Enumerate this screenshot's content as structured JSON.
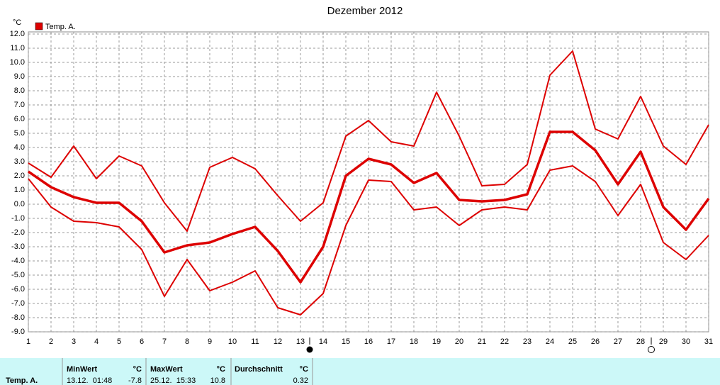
{
  "chart_data": {
    "type": "line",
    "title": "Dezember 2012",
    "y_unit": "°C",
    "legend": "Temp. A.",
    "legend_color": "#dd0000",
    "x": [
      1,
      2,
      3,
      4,
      5,
      6,
      7,
      8,
      9,
      10,
      11,
      12,
      13,
      14,
      15,
      16,
      17,
      18,
      19,
      20,
      21,
      22,
      23,
      24,
      25,
      26,
      27,
      28,
      29,
      30,
      31
    ],
    "xlim": [
      1,
      31
    ],
    "xticks": [
      1,
      2,
      3,
      4,
      5,
      6,
      7,
      8,
      9,
      10,
      11,
      12,
      13,
      14,
      15,
      16,
      17,
      18,
      19,
      20,
      21,
      22,
      23,
      24,
      25,
      26,
      27,
      28,
      29,
      30,
      31
    ],
    "ylim": [
      -9,
      12
    ],
    "yticks": [
      {
        "value": 12,
        "label": "12.0"
      },
      {
        "value": 11,
        "label": "11.0"
      },
      {
        "value": 10,
        "label": "10.0"
      },
      {
        "value": 9,
        "label": "9.0"
      },
      {
        "value": 8,
        "label": "8.0"
      },
      {
        "value": 7,
        "label": "7.0"
      },
      {
        "value": 6,
        "label": "6.0"
      },
      {
        "value": 5,
        "label": "5.0"
      },
      {
        "value": 4,
        "label": "4.0"
      },
      {
        "value": 3,
        "label": "3.0"
      },
      {
        "value": 2,
        "label": "2.0"
      },
      {
        "value": 1,
        "label": "1.0"
      },
      {
        "value": 0,
        "label": "0.0"
      },
      {
        "value": -1,
        "label": "-1.0"
      },
      {
        "value": -2,
        "label": "-2.0"
      },
      {
        "value": -3,
        "label": "-3.0"
      },
      {
        "value": -4,
        "label": "-4.0"
      },
      {
        "value": -5,
        "label": "-5.0"
      },
      {
        "value": -6,
        "label": "-6.0"
      },
      {
        "value": -7,
        "label": "-7.0"
      },
      {
        "value": -8,
        "label": "-8.0"
      },
      {
        "value": -9,
        "label": "-9.0"
      }
    ],
    "grid": true,
    "series": [
      {
        "color": "#dd0000",
        "width": 2,
        "values": [
          2.9,
          1.9,
          4.1,
          1.8,
          3.4,
          2.7,
          0.1,
          -1.9,
          2.6,
          3.3,
          2.5,
          0.6,
          -1.2,
          0.1,
          4.8,
          5.9,
          4.4,
          4.1,
          7.9,
          4.8,
          1.3,
          1.4,
          2.8,
          9.1,
          10.8,
          5.3,
          4.6,
          7.6,
          4.1,
          2.8,
          5.6
        ]
      },
      {
        "color": "#dd0000",
        "width": 3.5,
        "values": [
          2.3,
          1.2,
          0.5,
          0.1,
          0.1,
          -1.2,
          -3.4,
          -2.9,
          -2.7,
          -2.1,
          -1.6,
          -3.3,
          -5.5,
          -3.0,
          2.0,
          3.2,
          2.8,
          1.5,
          2.2,
          0.3,
          0.2,
          0.3,
          0.7,
          5.1,
          5.1,
          3.8,
          1.4,
          3.7,
          -0.2,
          -1.8,
          0.4
        ]
      },
      {
        "color": "#dd0000",
        "width": 2,
        "values": [
          1.8,
          -0.2,
          -1.2,
          -1.3,
          -1.6,
          -3.2,
          -6.5,
          -3.9,
          -6.1,
          -5.5,
          -4.7,
          -7.3,
          -7.8,
          -6.3,
          -1.5,
          1.7,
          1.6,
          -0.4,
          -0.2,
          -1.5,
          -0.4,
          -0.2,
          -0.4,
          2.4,
          2.7,
          1.6,
          -0.8,
          1.4,
          -2.7,
          -3.9,
          -2.2
        ]
      }
    ]
  },
  "stats": {
    "label": "Temp. A.",
    "min": {
      "title": "MinWert",
      "unit": "°C",
      "time": "13.12.  01:48",
      "value": -7.8
    },
    "max": {
      "title": "MaxWert",
      "unit": "°C",
      "time": "25.12.  15:33",
      "value": 10.8
    },
    "mean": {
      "title": "Durchschnitt",
      "unit": "°C",
      "value": 0.32
    }
  }
}
